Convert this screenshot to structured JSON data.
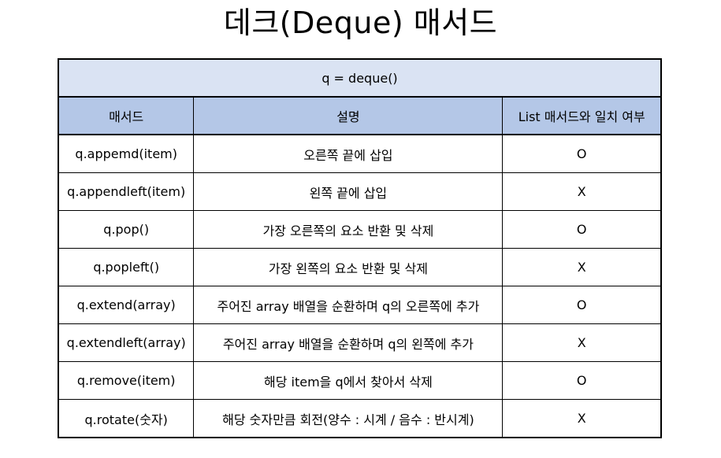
{
  "title": "데크(Deque) 매서드",
  "table": {
    "caption": "q = deque()",
    "headers": [
      "매서드",
      "설명",
      "List 매서드와 일치 여부"
    ],
    "rows": [
      {
        "method": "q.appemd(item)",
        "description": "오른쪽 끝에 삽입",
        "list_match": "O"
      },
      {
        "method": "q.appendleft(item)",
        "description": "왼쪽 끝에 삽입",
        "list_match": "X"
      },
      {
        "method": "q.pop()",
        "description": "가장 오른쪽의 요소 반환 및 삭제",
        "list_match": "O"
      },
      {
        "method": "q.popleft()",
        "description": "가장 왼쪽의 요소 반환 및 삭제",
        "list_match": "X"
      },
      {
        "method": "q.extend(array)",
        "description": "주어진 array 배열을 순환하며 q의 오른쪽에 추가",
        "list_match": "O"
      },
      {
        "method": "q.extendleft(array)",
        "description": "주어진 array 배열을 순환하며 q의 왼쪽에 추가",
        "list_match": "X"
      },
      {
        "method": "q.remove(item)",
        "description": "해당 item을 q에서 찾아서 삭제",
        "list_match": "O"
      },
      {
        "method": "q.rotate(숫자)",
        "description": "해당 숫자만큼 회전(양수 : 시계 / 음수 : 반시계)",
        "list_match": "X"
      }
    ]
  },
  "colors": {
    "caption_bg": "#dae3f3",
    "header_bg": "#b4c7e7",
    "border": "#000000"
  }
}
